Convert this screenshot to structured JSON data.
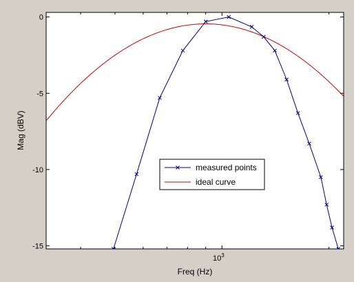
{
  "chart_data": {
    "type": "line",
    "title": "",
    "xlabel": "Freq (Hz)",
    "ylabel": "Mag (dBV)",
    "xscale": "log",
    "xlim": [
      320,
      2200
    ],
    "ylim": [
      -15.2,
      0.3
    ],
    "x_ticks": [
      {
        "value": 1000,
        "base": "10",
        "exp": "3"
      }
    ],
    "y_ticks": [
      {
        "value": 0,
        "label": "0"
      },
      {
        "value": -5,
        "label": "-5"
      },
      {
        "value": -10,
        "label": "-10"
      },
      {
        "value": -15,
        "label": "-15"
      }
    ],
    "grid": false,
    "legend": "center",
    "series": [
      {
        "name": "measured points",
        "color": "#000080",
        "marker": "x",
        "x": [
          495,
          575,
          668,
          776,
          900,
          1045,
          1213,
          1408,
          1636,
          1898,
          2040
        ],
        "y": [
          -15.2,
          -10.3,
          -5.3,
          -2.2,
          -0.3,
          0.0,
          -0.65,
          -2.2,
          -6.3,
          -10.5,
          -13.8
        ],
        "x_extra": [
          1310,
          1520,
          1760,
          1970,
          2125
        ],
        "y_extra": [
          -1.3,
          -4.1,
          -8.3,
          -12.3,
          -15.2
        ]
      },
      {
        "name": "ideal curve",
        "color": "#cc0000",
        "center": 900,
        "peak": -0.45,
        "curvature": 31.5
      }
    ]
  }
}
